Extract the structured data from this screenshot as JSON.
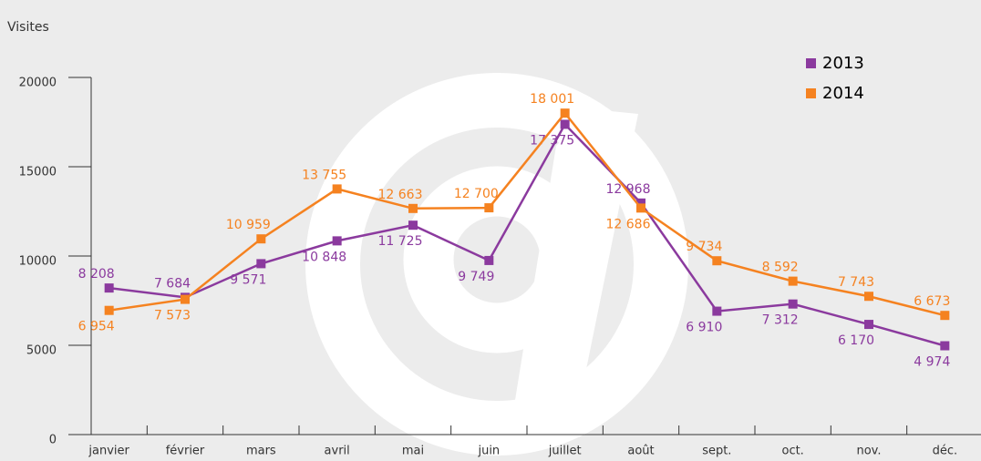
{
  "chart_data": {
    "type": "line",
    "title": "Visites",
    "categories": [
      "janvier",
      "février",
      "mars",
      "avril",
      "mai",
      "juin",
      "juillet",
      "août",
      "sept.",
      "oct.",
      "nov.",
      "déc."
    ],
    "series": [
      {
        "name": "2013",
        "color": "#8b3a9e",
        "values": [
          8208,
          7684,
          9571,
          10848,
          11725,
          9749,
          17375,
          12968,
          6910,
          7312,
          6170,
          4974
        ],
        "value_labels": [
          "8 208",
          "7 684",
          "9 571",
          "10 848",
          "11 725",
          "9 749",
          "17 375",
          "12 968",
          "6 910",
          "7 312",
          "6 170",
          "4 974"
        ]
      },
      {
        "name": "2014",
        "color": "#f58220",
        "values": [
          6954,
          7573,
          10959,
          13755,
          12663,
          12700,
          18001,
          12686,
          9734,
          8592,
          7743,
          6673
        ],
        "value_labels": [
          "6 954",
          "7 573",
          "10 959",
          "13 755",
          "12 663",
          "12 700",
          "18 001",
          "12 686",
          "9 734",
          "8 592",
          "7 743",
          "6 673"
        ]
      }
    ],
    "ylim": [
      0,
      20000
    ],
    "yticks": [
      0,
      5000,
      10000,
      15000,
      20000
    ]
  }
}
